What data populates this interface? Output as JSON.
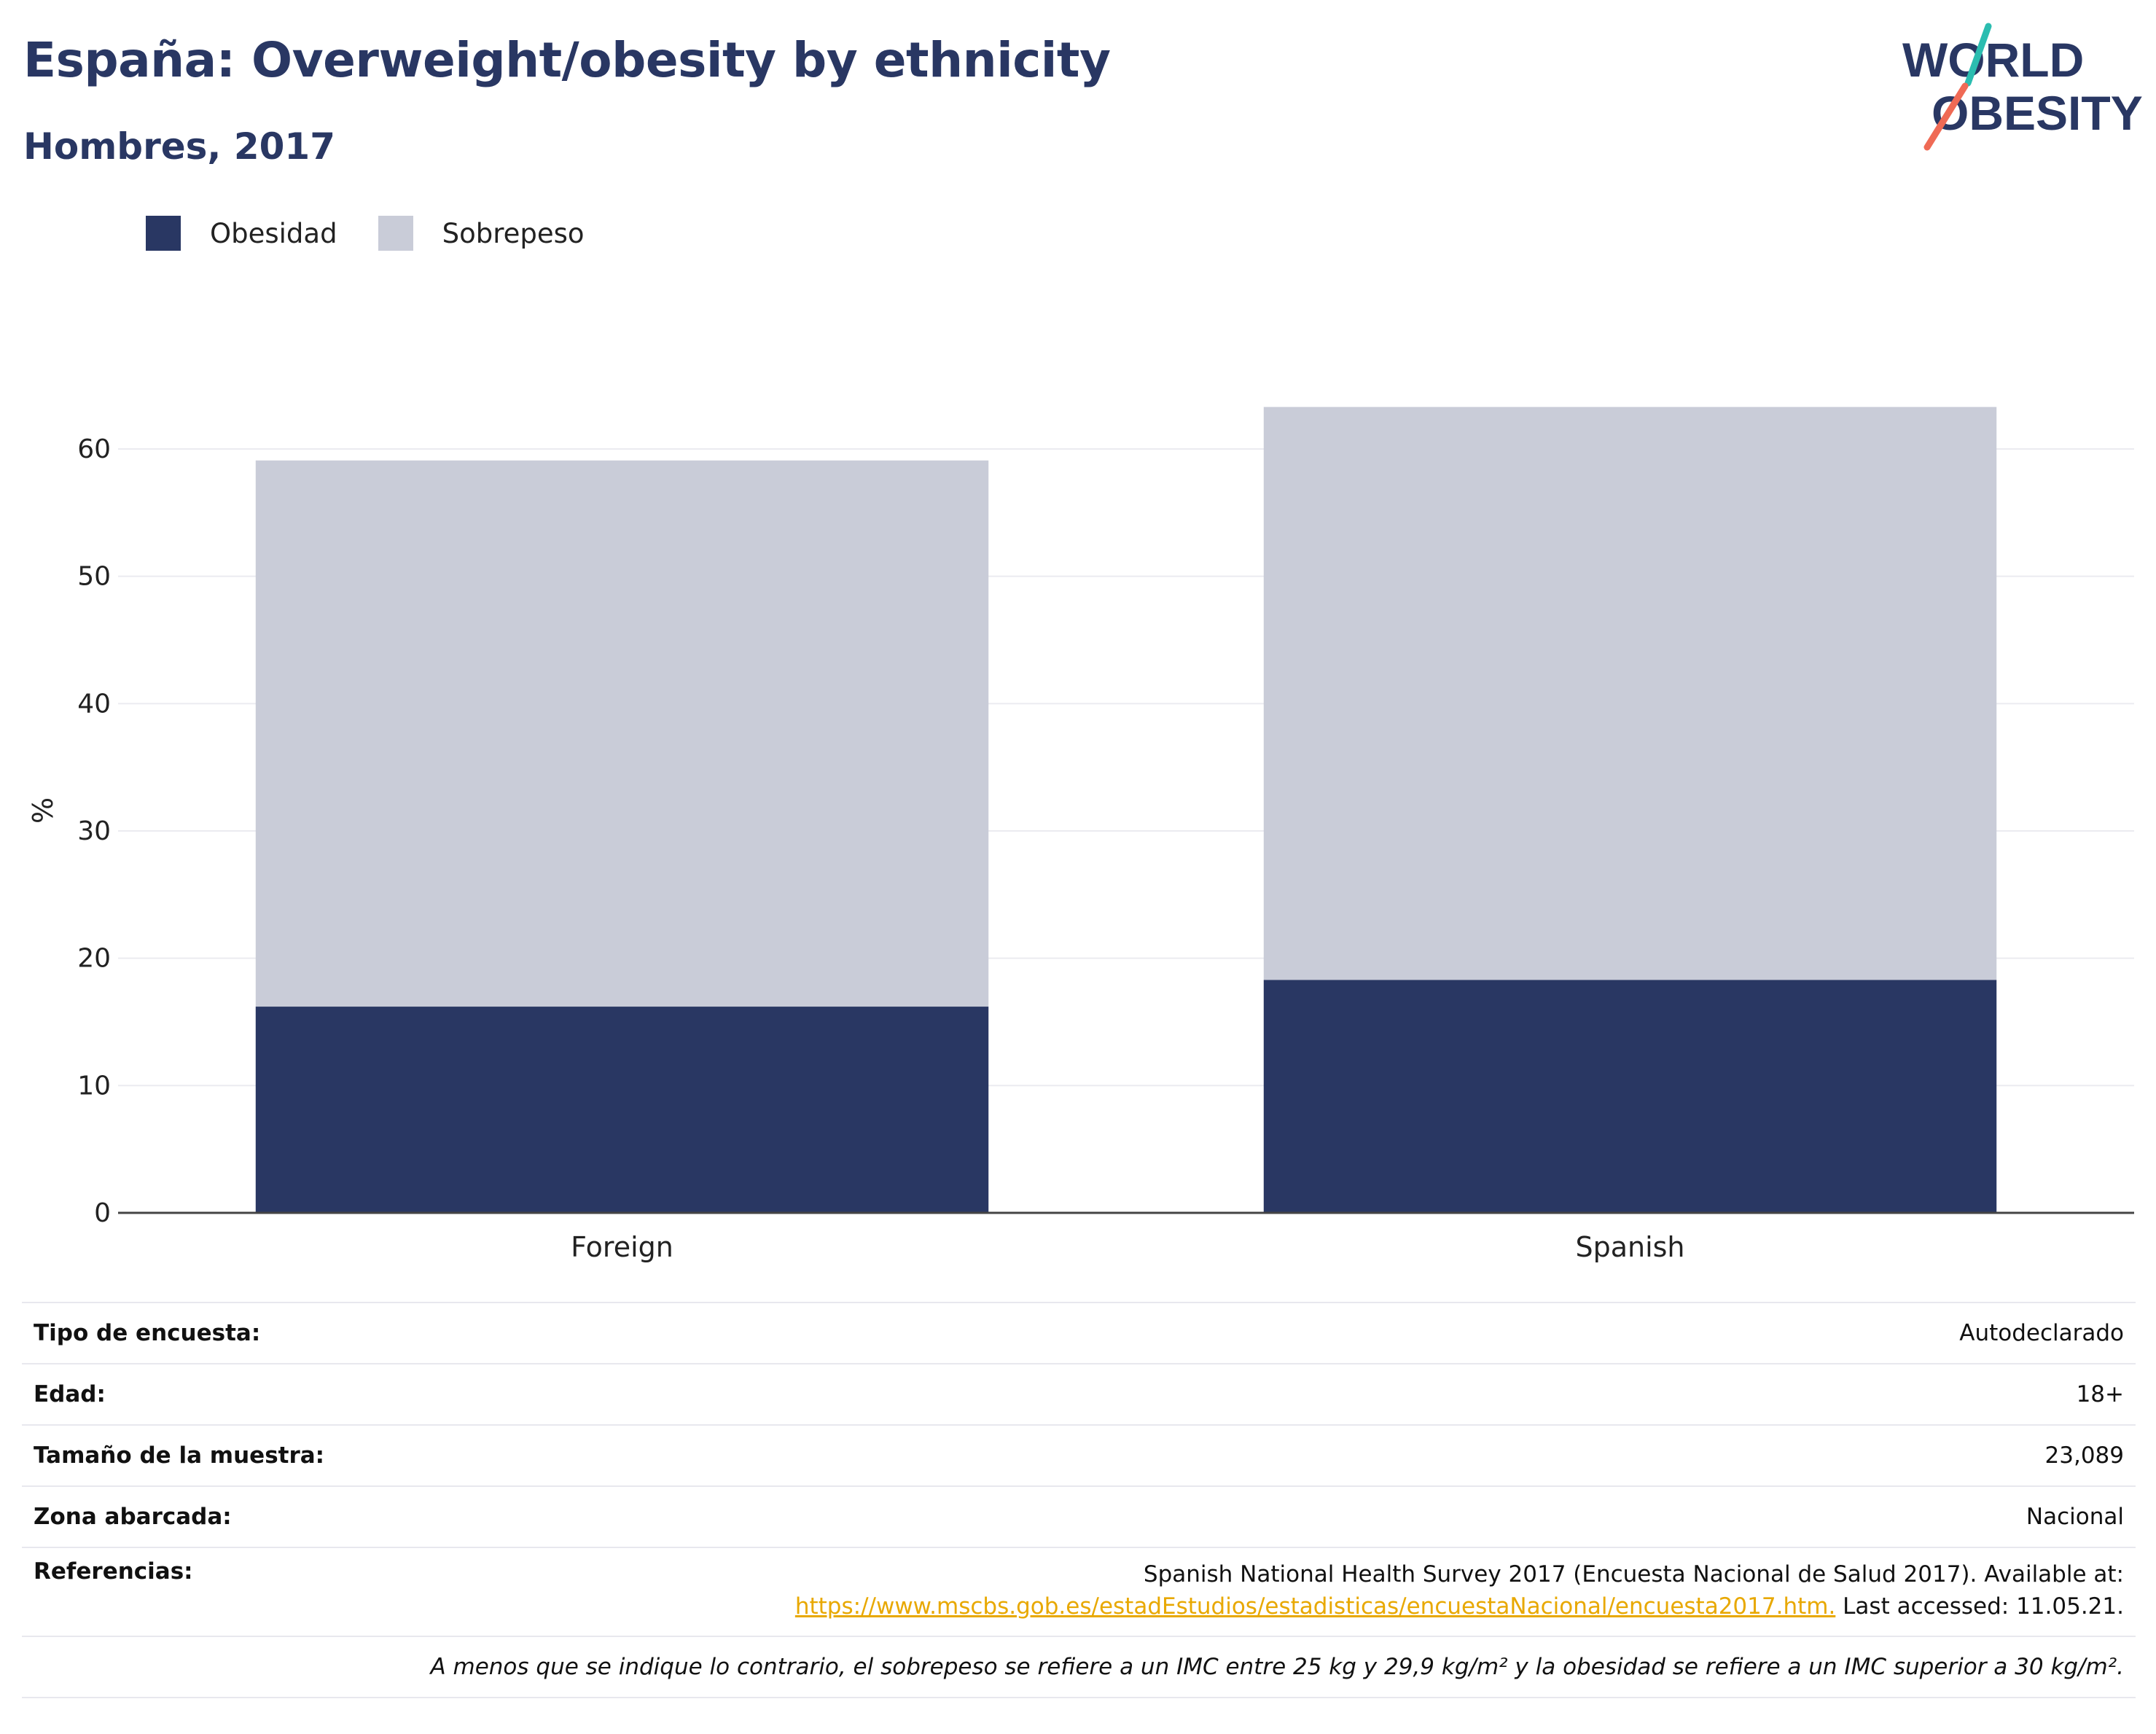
{
  "header": {
    "title": "España: Overweight/obesity by ethnicity",
    "subtitle": "Hombres, 2017"
  },
  "logo": {
    "line1": "WORLD",
    "line2": "OBESITY",
    "icon": "world-obesity-logo"
  },
  "colors": {
    "obesity": "#293763",
    "overweight": "#c9ccd8",
    "link": "#e8a800",
    "title": "#293763"
  },
  "chart_data": {
    "type": "bar",
    "stacked": true,
    "categories": [
      "Foreign",
      "Spanish"
    ],
    "series": [
      {
        "name": "Obesidad",
        "values": [
          16.2,
          18.3
        ]
      },
      {
        "name": "Sobrepeso",
        "values": [
          42.9,
          45.0
        ]
      }
    ],
    "title": "España: Overweight/obesity by ethnicity",
    "subtitle": "Hombres, 2017",
    "xlabel": "",
    "ylabel": "%",
    "ylim": [
      0,
      66
    ],
    "yticks": [
      0,
      10,
      20,
      30,
      40,
      50,
      60
    ],
    "grid": true,
    "legend": "top-left"
  },
  "info": {
    "rows": [
      {
        "label": "Tipo de encuesta:",
        "value": "Autodeclarado"
      },
      {
        "label": "Edad:",
        "value": "18+"
      },
      {
        "label": "Tamaño de la muestra:",
        "value": "23,089"
      },
      {
        "label": "Zona abarcada:",
        "value": "Nacional"
      }
    ],
    "references": {
      "label": "Referencias:",
      "line1": "Spanish National Health Survey 2017 (Encuesta Nacional de Salud 2017). Available at:",
      "link": "https://www.mscbs.gob.es/estadEstudios/estadisticas/encuestaNacional/encuesta2017.htm.",
      "after_link": " Last accessed: 11.05.21."
    },
    "note": "A menos que se indique lo contrario, el sobrepeso se refiere a un IMC entre 25 kg y 29,9 kg/m² y la obesidad se refiere a un IMC superior a 30 kg/m²."
  }
}
